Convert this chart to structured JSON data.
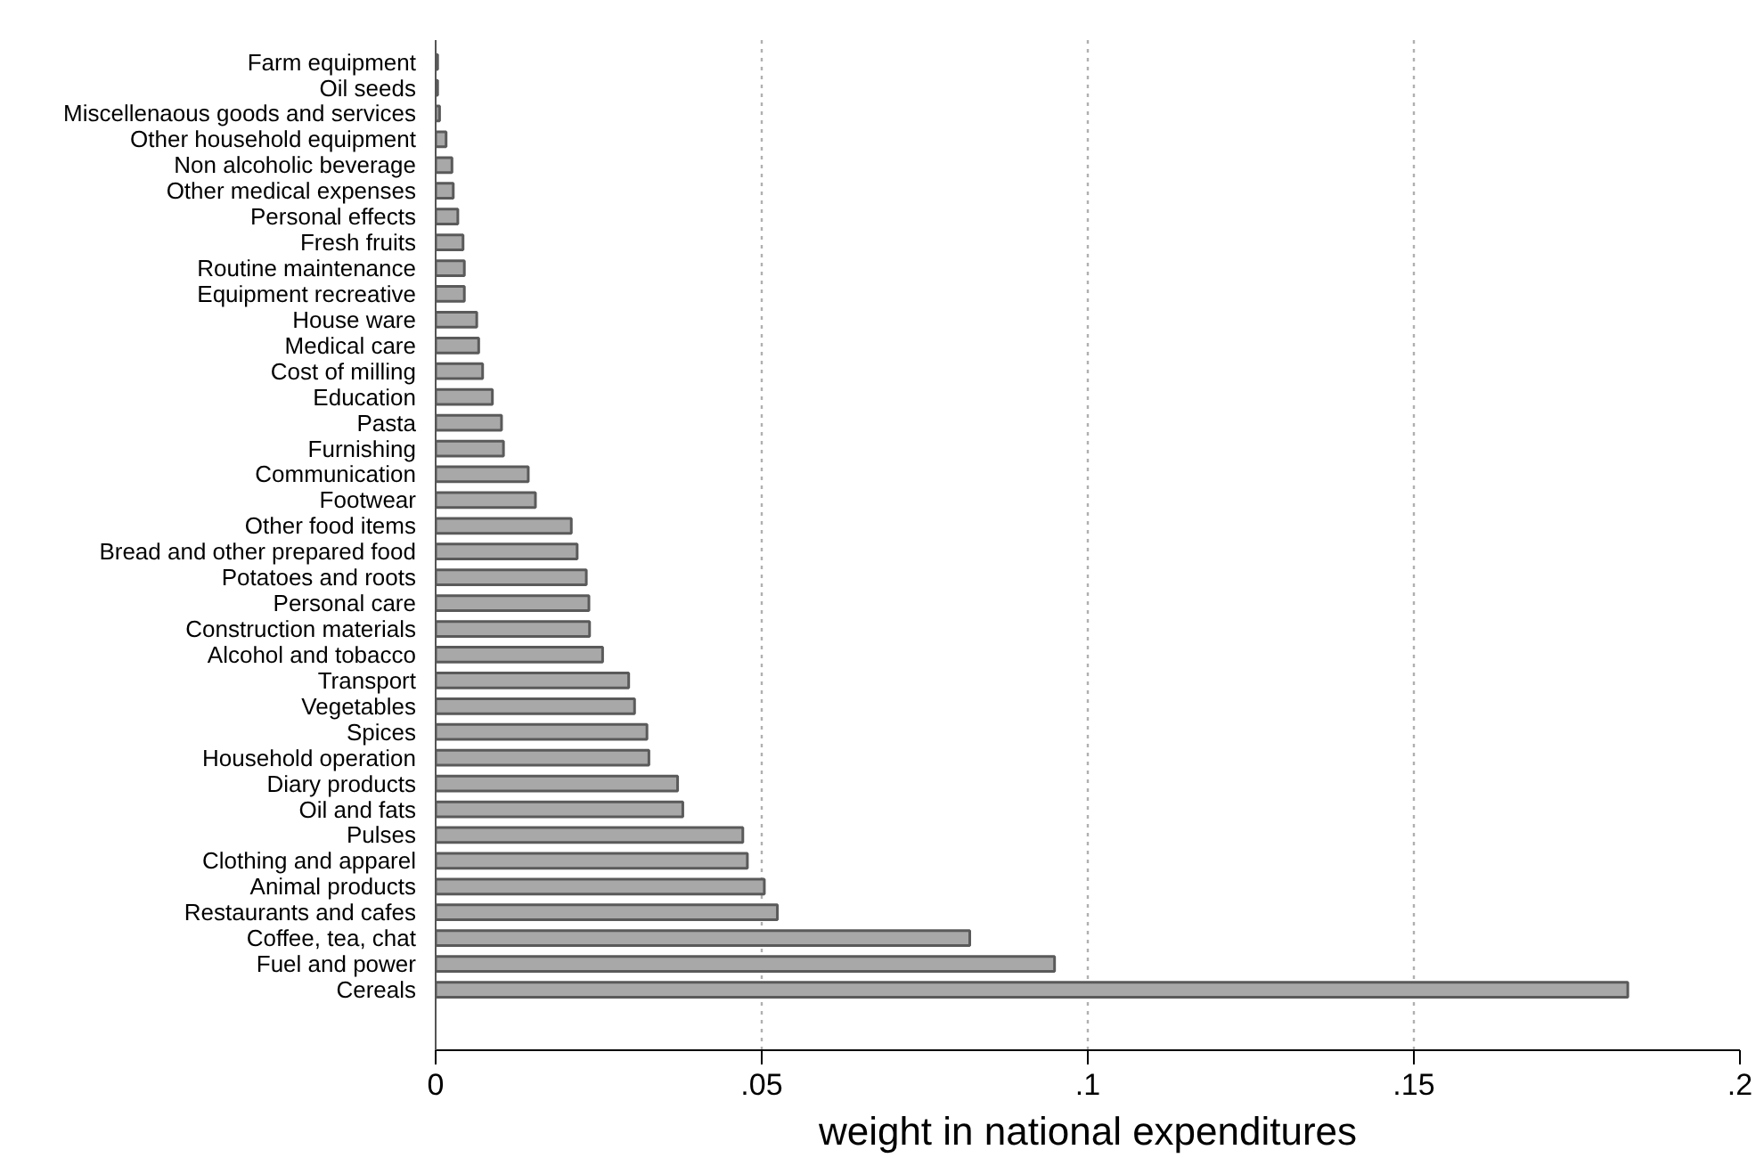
{
  "chart_data": {
    "type": "bar",
    "orientation": "horizontal",
    "xlabel": "weight in national expenditures",
    "categories": [
      "Farm equipment",
      "Oil seeds",
      "Miscellenaous goods and services",
      "Other household equipment",
      "Non alcoholic beverage",
      "Other medical expenses",
      "Personal effects",
      "Fresh fruits",
      "Routine maintenance",
      "Equipment recreative",
      "House ware",
      "Medical care",
      "Cost of milling",
      "Education",
      "Pasta",
      "Furnishing",
      "Communication",
      "Footwear",
      "Other food items",
      "Bread and other prepared food",
      "Potatoes and roots",
      "Personal care",
      "Construction materials",
      "Alcohol and tobacco",
      "Transport",
      "Vegetables",
      "Spices",
      "Household operation",
      "Diary products",
      "Oil and fats",
      "Pulses",
      "Clothing and apparel",
      "Animal products",
      "Restaurants and cafes",
      "Coffee, tea, chat",
      "Fuel and power",
      "Cereals"
    ],
    "values": [
      0.0003,
      0.0003,
      0.0006,
      0.0016,
      0.0025,
      0.0027,
      0.0034,
      0.0042,
      0.0044,
      0.0044,
      0.0063,
      0.0066,
      0.0072,
      0.0087,
      0.0101,
      0.0104,
      0.0142,
      0.0153,
      0.0208,
      0.0217,
      0.0231,
      0.0235,
      0.0236,
      0.0256,
      0.0296,
      0.0305,
      0.0324,
      0.0327,
      0.0371,
      0.0379,
      0.0471,
      0.0478,
      0.0504,
      0.0524,
      0.0819,
      0.0949,
      0.1828
    ],
    "color": "#a8a8a8",
    "xlim": [
      0,
      0.2
    ],
    "xticks": [
      0,
      {
        "value": 0.05,
        "label": ".05"
      },
      {
        "value": 0.1,
        "label": ".1"
      },
      {
        "value": 0.15,
        "label": ".15"
      },
      {
        "value": 0.2,
        "label": ".2"
      }
    ],
    "grid": "x"
  }
}
